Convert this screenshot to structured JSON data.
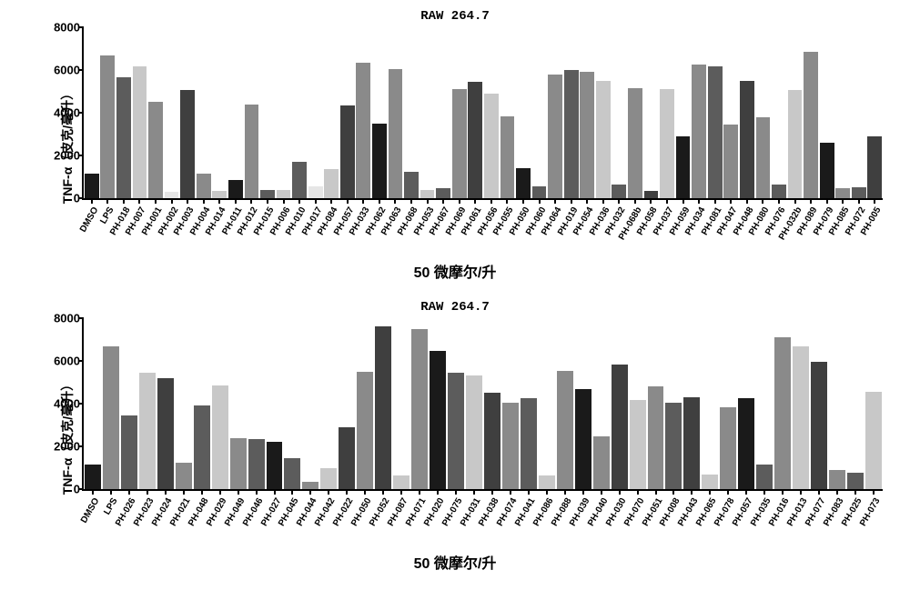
{
  "colors": {
    "palette": [
      "#1a1a1a",
      "#8a8a8a",
      "#5c5c5c",
      "#c8c8c8",
      "#e6e6e6",
      "#3f3f3f"
    ]
  },
  "axis": {
    "ylabel": "TNF-α（皮克/毫升）",
    "ymin": 0,
    "ymax": 8000,
    "ytick_step": 2000,
    "title_fontsize": 14,
    "tick_fontsize": 13
  },
  "chart1": {
    "title": "RAW 264.7",
    "xlabel": "50 微摩尔/升",
    "categories": [
      "DMSO",
      "LPS",
      "PH-018",
      "PH-007",
      "PH-001",
      "PH-002",
      "PH-003",
      "PH-004",
      "PH-014",
      "PH-011",
      "PH-012",
      "PH-015",
      "PH-006",
      "PH-010",
      "PH-017",
      "PH-084",
      "PH-057",
      "PH-033",
      "PH-062",
      "PH-063",
      "PH-068",
      "PH-053",
      "PH-067",
      "PH-069",
      "PH-061",
      "PH-056",
      "PH-055",
      "PH-050",
      "PH-060",
      "PH-064",
      "PH-019",
      "PH-054",
      "PH-036",
      "PH-032",
      "PH-068b",
      "PH-058",
      "PH-037",
      "PH-059",
      "PH-034",
      "PH-081",
      "PH-047",
      "PH-048",
      "PH-080",
      "PH-076",
      "PH-032b",
      "PH-089",
      "PH-079",
      "PH-085",
      "PH-072",
      "PH-005"
    ],
    "values": [
      1150,
      6700,
      5650,
      6150,
      4500,
      300,
      5050,
      1150,
      350,
      850,
      4400,
      400,
      400,
      1700,
      550,
      1350,
      4350,
      6350,
      3500,
      6050,
      1250,
      400,
      450,
      5100,
      5450,
      4900,
      3850,
      1400,
      550,
      5800,
      6000,
      5900,
      5500,
      650,
      5150,
      350,
      5100,
      2900,
      6250,
      6150,
      3450,
      5500,
      3800,
      650,
      5050,
      6850,
      2600,
      450,
      500,
      2900
    ],
    "bar_colors": [
      "#1a1a1a",
      "#8a8a8a",
      "#5c5c5c",
      "#c8c8c8",
      "#8a8a8a",
      "#e6e6e6",
      "#3f3f3f",
      "#8a8a8a",
      "#c8c8c8",
      "#1a1a1a",
      "#8a8a8a",
      "#5c5c5c",
      "#c8c8c8",
      "#5c5c5c",
      "#e6e6e6",
      "#c8c8c8",
      "#3f3f3f",
      "#8a8a8a",
      "#1a1a1a",
      "#8a8a8a",
      "#5c5c5c",
      "#c8c8c8",
      "#5c5c5c",
      "#8a8a8a",
      "#3f3f3f",
      "#c8c8c8",
      "#8a8a8a",
      "#1a1a1a",
      "#5c5c5c",
      "#8a8a8a",
      "#5c5c5c",
      "#8a8a8a",
      "#c8c8c8",
      "#5c5c5c",
      "#8a8a8a",
      "#3f3f3f",
      "#c8c8c8",
      "#1a1a1a",
      "#8a8a8a",
      "#5c5c5c",
      "#8a8a8a",
      "#3f3f3f",
      "#8a8a8a",
      "#5c5c5c",
      "#c8c8c8",
      "#8a8a8a",
      "#1a1a1a",
      "#8a8a8a",
      "#5c5c5c",
      "#3f3f3f"
    ]
  },
  "chart2": {
    "title": "RAW 264.7",
    "xlabel": "50 微摩尔/升",
    "categories": [
      "DMSO",
      "LPS",
      "PH-026",
      "PH-023",
      "PH-024",
      "PH-021",
      "PH-048",
      "PH-029",
      "PH-049",
      "PH-046",
      "PH-027",
      "PH-045",
      "PH-044",
      "PH-042",
      "PH-022",
      "PH-050",
      "PH-052",
      "PH-087",
      "PH-071",
      "PH-020",
      "PH-075",
      "PH-031",
      "PH-038",
      "PH-074",
      "PH-041",
      "PH-086",
      "PH-088",
      "PH-039",
      "PH-040",
      "PH-030",
      "PH-070",
      "PH-051",
      "PH-008",
      "PH-043",
      "PH-065",
      "PH-078",
      "PH-057",
      "PH-035",
      "PH-016",
      "PH-013",
      "PH-077",
      "PH-083",
      "PH-025",
      "PH-073"
    ],
    "values": [
      1150,
      6700,
      3450,
      5450,
      5200,
      1250,
      3900,
      4850,
      2400,
      2350,
      2200,
      1450,
      350,
      1000,
      2900,
      5500,
      7600,
      650,
      7500,
      6450,
      5450,
      5300,
      4500,
      4050,
      4250,
      650,
      5550,
      4700,
      2450,
      5850,
      4150,
      4800,
      4050,
      4300,
      700,
      3850,
      4250,
      1150,
      7100,
      6700,
      5950,
      900,
      750,
      4550
    ],
    "bar_colors": [
      "#1a1a1a",
      "#8a8a8a",
      "#5c5c5c",
      "#c8c8c8",
      "#3f3f3f",
      "#8a8a8a",
      "#5c5c5c",
      "#c8c8c8",
      "#8a8a8a",
      "#5c5c5c",
      "#1a1a1a",
      "#5c5c5c",
      "#8a8a8a",
      "#c8c8c8",
      "#3f3f3f",
      "#8a8a8a",
      "#3f3f3f",
      "#c8c8c8",
      "#8a8a8a",
      "#1a1a1a",
      "#5c5c5c",
      "#c8c8c8",
      "#3f3f3f",
      "#8a8a8a",
      "#5c5c5c",
      "#c8c8c8",
      "#8a8a8a",
      "#1a1a1a",
      "#8a8a8a",
      "#3f3f3f",
      "#c8c8c8",
      "#8a8a8a",
      "#5c5c5c",
      "#3f3f3f",
      "#c8c8c8",
      "#8a8a8a",
      "#1a1a1a",
      "#5c5c5c",
      "#8a8a8a",
      "#c8c8c8",
      "#3f3f3f",
      "#8a8a8a",
      "#5c5c5c",
      "#c8c8c8"
    ]
  }
}
